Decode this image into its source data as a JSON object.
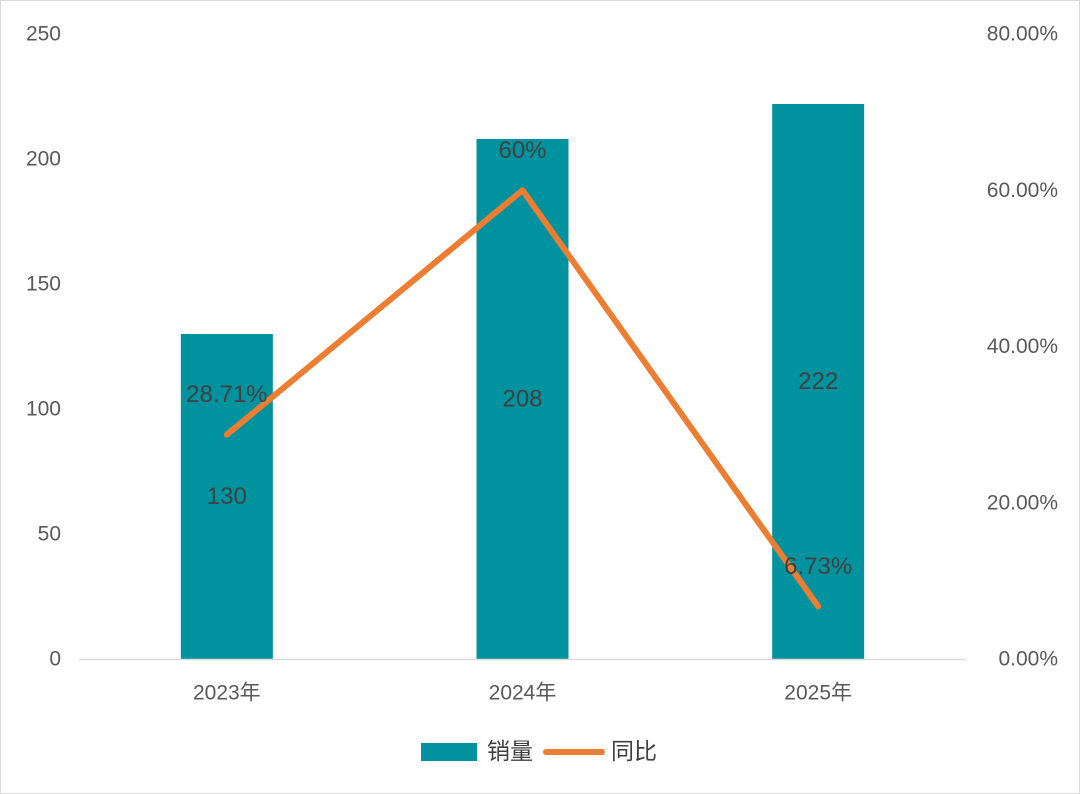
{
  "chart_data": {
    "type": "bar+line",
    "categories": [
      "2023年",
      "2024年",
      "2025年"
    ],
    "series": [
      {
        "name": "销量",
        "type": "bar",
        "axis": "left",
        "color": "#00929E",
        "values": [
          130,
          208,
          222
        ],
        "labels": [
          "130",
          "208",
          "222"
        ]
      },
      {
        "name": "同比",
        "type": "line",
        "axis": "right",
        "color": "#ED7D31",
        "values": [
          28.71,
          60,
          6.73
        ],
        "labels": [
          "28.71%",
          "60%",
          "6.73%"
        ]
      }
    ],
    "y_left": {
      "ylim": [
        0,
        250
      ],
      "ticks": [
        0,
        50,
        100,
        150,
        200,
        250
      ],
      "tick_labels": [
        "0",
        "50",
        "100",
        "150",
        "200",
        "250"
      ]
    },
    "y_right": {
      "ylim": [
        0,
        80
      ],
      "ticks": [
        0,
        20,
        40,
        60,
        80
      ],
      "tick_labels": [
        "0.00%",
        "20.00%",
        "40.00%",
        "60.00%",
        "80.00%"
      ]
    },
    "grid": false,
    "legend": "bottom-center",
    "title": "",
    "xlabel": "",
    "ylabel": ""
  }
}
